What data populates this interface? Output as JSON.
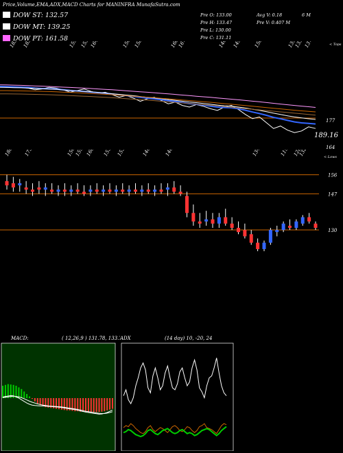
{
  "header": {
    "title": "Price,Volume,EMA,ADX,MACD Charts for MANINFRA MunafaSutra.com",
    "legend": [
      {
        "label": "DOW ST: 132.57",
        "color": "#ffffff"
      },
      {
        "label": "DOW MT: 139.25",
        "color": "#ffffff"
      },
      {
        "label": "DOW PT: 161.58",
        "color": "#ff66ff"
      }
    ],
    "stats": [
      {
        "key": "Pre  O:",
        "value": "133.00"
      },
      {
        "key": "Pre  H:",
        "value": "133.47"
      },
      {
        "key": "Pre  L:",
        "value": "130.00"
      },
      {
        "key": "Pre  C:",
        "value": "131.11"
      }
    ],
    "avg": "Avg V: 0.18",
    "avg_unit": "6   M",
    "pre_v": "Pre  V: 0.407 M"
  },
  "chart_data": [
    {
      "type": "line",
      "name": "ema-panel",
      "top_labels": [
        "183",
        "183",
        "159",
        "155",
        "164",
        "156",
        "158",
        "160",
        "167",
        "146",
        "149",
        "150",
        "139",
        "135",
        "137"
      ],
      "corner_label": "< Tops",
      "price_labels": [
        "177",
        "189.16",
        "164"
      ],
      "series": [
        {
          "color": "#ffffff",
          "values": [
            0.55,
            0.6,
            0.58,
            0.62,
            0.7,
            0.9,
            0.8,
            0.6,
            0.7,
            0.9,
            1.2,
            1.0,
            0.8,
            1.1,
            1.3,
            1.2,
            1.5,
            1.8,
            1.6,
            1.9,
            2.3,
            2.0,
            1.8,
            2.2,
            2.6,
            2.4,
            2.8,
            3.0,
            2.7,
            2.9,
            3.2,
            3.4,
            3.0,
            2.8,
            3.3,
            3.9,
            4.4,
            4.2,
            4.9,
            5.6,
            5.3,
            5.8,
            6.1,
            5.9,
            5.4,
            5.6
          ]
        },
        {
          "color": "#3366ff",
          "values": [
            0.5,
            0.52,
            0.55,
            0.58,
            0.62,
            0.7,
            0.75,
            0.78,
            0.82,
            0.9,
            0.98,
            1.04,
            1.1,
            1.18,
            1.25,
            1.32,
            1.42,
            1.52,
            1.6,
            1.7,
            1.82,
            1.92,
            2.0,
            2.1,
            2.22,
            2.32,
            2.45,
            2.58,
            2.66,
            2.76,
            2.88,
            3.0,
            3.05,
            3.08,
            3.2,
            3.38,
            3.6,
            3.78,
            4.0,
            4.25,
            4.42,
            4.62,
            4.8,
            4.92,
            4.98,
            5.05
          ]
        },
        {
          "color": "#ffffff",
          "values": [
            0.6,
            0.62,
            0.64,
            0.66,
            0.7,
            0.74,
            0.78,
            0.82,
            0.86,
            0.92,
            0.98,
            1.04,
            1.1,
            1.16,
            1.22,
            1.3,
            1.38,
            1.46,
            1.54,
            1.62,
            1.72,
            1.82,
            1.9,
            1.98,
            2.08,
            2.18,
            2.28,
            2.38,
            2.46,
            2.56,
            2.66,
            2.76,
            2.84,
            2.9,
            3.0,
            3.12,
            3.26,
            3.4,
            3.56,
            3.74,
            3.9,
            4.06,
            4.2,
            4.32,
            4.42,
            4.5
          ]
        },
        {
          "color": "#ff99ff",
          "values": [
            0.3,
            0.32,
            0.34,
            0.37,
            0.4,
            0.43,
            0.46,
            0.5,
            0.54,
            0.58,
            0.62,
            0.66,
            0.7,
            0.75,
            0.8,
            0.85,
            0.9,
            0.96,
            1.02,
            1.08,
            1.14,
            1.2,
            1.26,
            1.33,
            1.4,
            1.47,
            1.54,
            1.61,
            1.68,
            1.75,
            1.82,
            1.9,
            1.97,
            2.04,
            2.12,
            2.2,
            2.28,
            2.36,
            2.45,
            2.54,
            2.63,
            2.72,
            2.8,
            2.88,
            2.96,
            3.04
          ]
        },
        {
          "color": "#cc6600",
          "values": [
            1.0,
            1.0,
            1.02,
            1.03,
            1.05,
            1.07,
            1.09,
            1.12,
            1.15,
            1.18,
            1.22,
            1.26,
            1.3,
            1.35,
            1.4,
            1.45,
            1.5,
            1.56,
            1.62,
            1.68,
            1.74,
            1.8,
            1.86,
            1.93,
            2.0,
            2.07,
            2.14,
            2.21,
            2.28,
            2.35,
            2.42,
            2.5,
            2.58,
            2.66,
            2.74,
            2.82,
            2.9,
            2.98,
            3.06,
            3.14,
            3.22,
            3.3,
            3.38,
            3.46,
            3.52,
            3.58
          ]
        },
        {
          "color": "#996633",
          "values": [
            1.4,
            1.4,
            1.41,
            1.42,
            1.44,
            1.46,
            1.48,
            1.5,
            1.53,
            1.56,
            1.6,
            1.64,
            1.68,
            1.72,
            1.77,
            1.82,
            1.87,
            1.92,
            1.98,
            2.04,
            2.1,
            2.16,
            2.22,
            2.29,
            2.36,
            2.43,
            2.5,
            2.57,
            2.64,
            2.71,
            2.78,
            2.86,
            2.94,
            3.02,
            3.1,
            3.18,
            3.26,
            3.34,
            3.42,
            3.5,
            3.58,
            3.66,
            3.74,
            3.82,
            3.9,
            3.98
          ]
        }
      ]
    },
    {
      "type": "candlestick",
      "name": "price-panel",
      "top_labels": [
        "180",
        "175",
        "156",
        "159",
        "160",
        "153",
        "153",
        "146",
        "146",
        "134",
        "119",
        "128",
        "132"
      ],
      "corner_label": "< Lows",
      "price_labels": [
        "156",
        "147",
        "130"
      ],
      "ylim": [
        120,
        162
      ],
      "candles": [
        {
          "o": 153,
          "h": 156,
          "l": 149,
          "c": 151
        },
        {
          "o": 152,
          "h": 155,
          "l": 148,
          "c": 150
        },
        {
          "o": 151,
          "h": 154,
          "l": 148,
          "c": 152
        },
        {
          "o": 150,
          "h": 153,
          "l": 147,
          "c": 149
        },
        {
          "o": 149,
          "h": 152,
          "l": 146,
          "c": 148
        },
        {
          "o": 150,
          "h": 153,
          "l": 147,
          "c": 149
        },
        {
          "o": 149,
          "h": 152,
          "l": 146,
          "c": 150
        },
        {
          "o": 149,
          "h": 152,
          "l": 147,
          "c": 148
        },
        {
          "o": 148,
          "h": 151,
          "l": 146,
          "c": 149
        },
        {
          "o": 149,
          "h": 152,
          "l": 146,
          "c": 148
        },
        {
          "o": 148,
          "h": 151,
          "l": 146,
          "c": 149
        },
        {
          "o": 149,
          "h": 152,
          "l": 147,
          "c": 148
        },
        {
          "o": 148,
          "h": 151,
          "l": 146,
          "c": 147
        },
        {
          "o": 148,
          "h": 151,
          "l": 146,
          "c": 149
        },
        {
          "o": 149,
          "h": 152,
          "l": 147,
          "c": 148
        },
        {
          "o": 148,
          "h": 151,
          "l": 146,
          "c": 149
        },
        {
          "o": 149,
          "h": 152,
          "l": 147,
          "c": 148
        },
        {
          "o": 148,
          "h": 151,
          "l": 146,
          "c": 149
        },
        {
          "o": 149,
          "h": 152,
          "l": 147,
          "c": 148
        },
        {
          "o": 148,
          "h": 151,
          "l": 146,
          "c": 149
        },
        {
          "o": 149,
          "h": 152,
          "l": 147,
          "c": 148
        },
        {
          "o": 148,
          "h": 151,
          "l": 146,
          "c": 149
        },
        {
          "o": 149,
          "h": 152,
          "l": 147,
          "c": 148
        },
        {
          "o": 148,
          "h": 151,
          "l": 146,
          "c": 149
        },
        {
          "o": 149,
          "h": 152,
          "l": 147,
          "c": 148
        },
        {
          "o": 149,
          "h": 152,
          "l": 146,
          "c": 150
        },
        {
          "o": 150,
          "h": 153,
          "l": 147,
          "c": 148
        },
        {
          "o": 148,
          "h": 151,
          "l": 146,
          "c": 147
        },
        {
          "o": 146,
          "h": 148,
          "l": 136,
          "c": 138
        },
        {
          "o": 138,
          "h": 142,
          "l": 132,
          "c": 134
        },
        {
          "o": 134,
          "h": 138,
          "l": 131,
          "c": 133
        },
        {
          "o": 134,
          "h": 139,
          "l": 132,
          "c": 135
        },
        {
          "o": 135,
          "h": 138,
          "l": 131,
          "c": 133
        },
        {
          "o": 133,
          "h": 138,
          "l": 131,
          "c": 136
        },
        {
          "o": 136,
          "h": 140,
          "l": 132,
          "c": 133
        },
        {
          "o": 133,
          "h": 136,
          "l": 130,
          "c": 131
        },
        {
          "o": 131,
          "h": 134,
          "l": 128,
          "c": 129
        },
        {
          "o": 130,
          "h": 133,
          "l": 126,
          "c": 127
        },
        {
          "o": 128,
          "h": 130,
          "l": 123,
          "c": 124
        },
        {
          "o": 124,
          "h": 126,
          "l": 120,
          "c": 121
        },
        {
          "o": 121,
          "h": 125,
          "l": 120,
          "c": 124
        },
        {
          "o": 124,
          "h": 131,
          "l": 123,
          "c": 130
        },
        {
          "o": 129,
          "h": 132,
          "l": 127,
          "c": 130
        },
        {
          "o": 130,
          "h": 134,
          "l": 129,
          "c": 133
        },
        {
          "o": 132,
          "h": 135,
          "l": 130,
          "c": 131
        },
        {
          "o": 131,
          "h": 135,
          "l": 130,
          "c": 134
        },
        {
          "o": 133,
          "h": 137,
          "l": 132,
          "c": 136
        },
        {
          "o": 136,
          "h": 138,
          "l": 133,
          "c": 134
        },
        {
          "o": 133,
          "h": 134,
          "l": 130,
          "c": 131
        }
      ]
    },
    {
      "type": "macd",
      "name": "macd-panel",
      "label": "MACD:",
      "values_text": "( 12,26,9 ) 131.78,  133.77,  -1.99",
      "histogram": [
        3,
        3.2,
        3.4,
        3.3,
        3.2,
        3,
        2.6,
        2.2,
        1.6,
        1.0,
        0.4,
        -0.2,
        -0.8,
        -1.3,
        -1.7,
        -2.0,
        -2.2,
        -2.3,
        -2.4,
        -2.5,
        -2.6,
        -2.7,
        -2.8,
        -2.9,
        -3.0,
        -3.0,
        -3.1,
        -3.2,
        -3.2,
        -3.3,
        -3.3,
        -3.3,
        -3.4,
        -3.4,
        -3.4,
        -3.4,
        -3.4,
        -3.3,
        -3.2,
        -3.0,
        -2.8,
        -2.6
      ],
      "series": [
        {
          "color": "#ffffff",
          "values": [
            0.5,
            0.8,
            1.0,
            1.2,
            1.1,
            0.6,
            0.0,
            -0.8,
            -1.6,
            -2.4,
            -3.0,
            -3.4,
            -3.6,
            -3.7,
            -3.8,
            -3.8,
            -3.9,
            -4.0,
            -4.1,
            -4.2,
            -4.3,
            -4.4,
            -4.6,
            -4.8,
            -5.0,
            -5.2,
            -5.4,
            -5.6,
            -5.9,
            -6.2,
            -6.5,
            -6.8,
            -7.0,
            -7.2,
            -7.4,
            -7.6,
            -7.8,
            -7.7,
            -7.4,
            -7.0,
            -6.4,
            -5.8
          ]
        },
        {
          "color": "#ffffff",
          "values": [
            0.2,
            0.4,
            0.6,
            0.8,
            0.9,
            0.8,
            0.6,
            0.2,
            -0.3,
            -0.9,
            -1.5,
            -2.0,
            -2.4,
            -2.8,
            -3.1,
            -3.4,
            -3.6,
            -3.8,
            -3.9,
            -4.0,
            -4.1,
            -4.2,
            -4.3,
            -4.5,
            -4.7,
            -4.9,
            -5.1,
            -5.3,
            -5.5,
            -5.8,
            -6.1,
            -6.4,
            -6.6,
            -6.8,
            -7.0,
            -7.2,
            -7.4,
            -7.5,
            -7.5,
            -7.3,
            -7.0,
            -6.6
          ]
        }
      ]
    },
    {
      "type": "adx",
      "name": "adx-panel",
      "label": "ADX",
      "values_text": "(14  day) 10,  -20,  24",
      "series": [
        {
          "color": "#ffffff",
          "values": [
            52,
            58,
            48,
            44,
            50,
            62,
            70,
            80,
            85,
            78,
            60,
            55,
            72,
            80,
            70,
            58,
            62,
            75,
            82,
            70,
            60,
            58,
            64,
            76,
            80,
            70,
            62,
            66,
            80,
            88,
            78,
            60,
            56,
            50,
            62,
            70,
            72,
            80,
            90,
            75,
            62,
            55,
            52
          ]
        },
        {
          "color": "#cc6600",
          "values": [
            20,
            22,
            21,
            24,
            22,
            19,
            17,
            15,
            14,
            16,
            20,
            22,
            18,
            16,
            18,
            20,
            19,
            17,
            15,
            18,
            21,
            22,
            20,
            17,
            16,
            18,
            21,
            20,
            17,
            15,
            17,
            21,
            22,
            24,
            20,
            19,
            18,
            16,
            14,
            18,
            22,
            24,
            23
          ]
        },
        {
          "color": "#00cc00",
          "values": [
            15,
            16,
            18,
            17,
            15,
            13,
            12,
            11,
            12,
            14,
            17,
            18,
            16,
            14,
            13,
            15,
            17,
            18,
            19,
            17,
            15,
            14,
            15,
            17,
            18,
            16,
            14,
            15,
            14,
            12,
            13,
            15,
            17,
            18,
            19,
            18,
            16,
            14,
            12,
            14,
            17,
            19,
            21
          ]
        }
      ]
    }
  ]
}
